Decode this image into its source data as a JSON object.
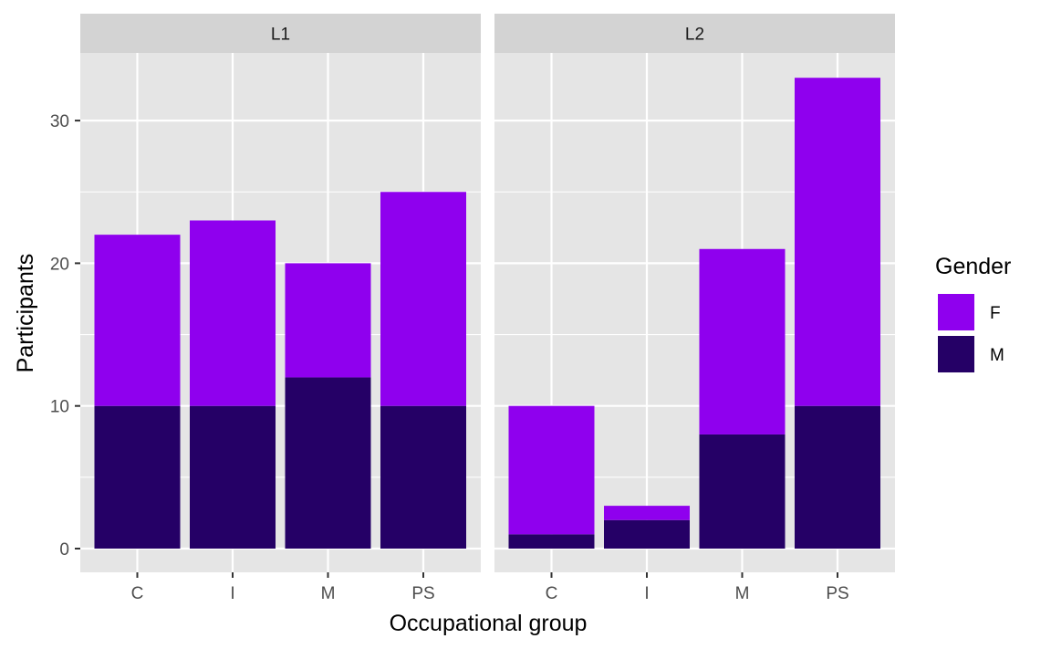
{
  "chart_data": {
    "type": "bar",
    "stacked": true,
    "facets": [
      "L1",
      "L2"
    ],
    "categories": [
      "C",
      "I",
      "M",
      "PS"
    ],
    "xlabel": "Occupational group",
    "ylabel": "Participants",
    "ylim": [
      0,
      35
    ],
    "y_ticks": [
      0,
      10,
      20,
      30
    ],
    "y_tick_labels": [
      "0",
      "10",
      "20",
      "30"
    ],
    "grid": true,
    "legend": {
      "title": "Gender",
      "position": "right",
      "entries": [
        {
          "label": "F",
          "color": "#8f00ee"
        },
        {
          "label": "M",
          "color": "#250066"
        }
      ]
    },
    "series": [
      {
        "name": "F",
        "color": "#8f00ee",
        "values": {
          "L1": [
            12,
            13,
            8,
            15
          ],
          "L2": [
            9,
            1,
            13,
            23
          ]
        }
      },
      {
        "name": "M",
        "color": "#250066",
        "values": {
          "L1": [
            10,
            10,
            12,
            10
          ],
          "L2": [
            1,
            2,
            8,
            10
          ]
        }
      }
    ],
    "totals": {
      "L1": [
        22,
        23,
        20,
        25
      ],
      "L2": [
        10,
        3,
        21,
        33
      ]
    }
  },
  "colors": {
    "panel_bg": "#e5e5e5",
    "strip_bg": "#d3d3d3",
    "grid": "#ffffff",
    "tick": "#333333"
  }
}
